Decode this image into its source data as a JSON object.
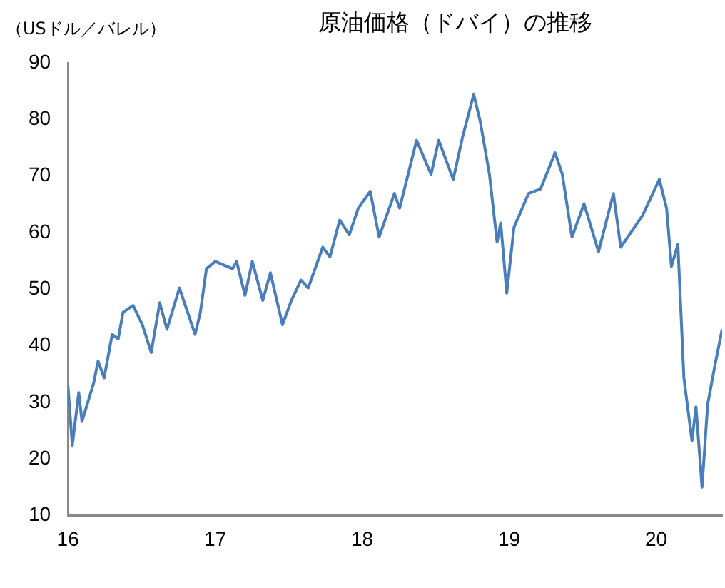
{
  "chart_data": {
    "type": "line",
    "title": "原油価格（ドバイ）の推移",
    "ylabel": "（USドル／バレル）",
    "xlim": [
      "2016-01-01",
      "2020-06-13"
    ],
    "xticks": [
      {
        "value": "2016-01-01",
        "label": "16"
      },
      {
        "value": "2017-01-01",
        "label": "17"
      },
      {
        "value": "2018-01-01",
        "label": "18"
      },
      {
        "value": "2019-01-01",
        "label": "19"
      },
      {
        "value": "2020-01-01",
        "label": "20"
      }
    ],
    "ylim": [
      10,
      90
    ],
    "yticks": [
      10,
      20,
      30,
      40,
      50,
      60,
      70,
      80,
      90
    ],
    "grid": false,
    "legend": false,
    "marker": "none",
    "series": [
      {
        "color": "#4a7ebb",
        "x": [
          "2016-01-01",
          "2016-01-12",
          "2016-01-28",
          "2016-02-05",
          "2016-03-05",
          "2016-03-16",
          "2016-03-31",
          "2016-04-20",
          "2016-05-05",
          "2016-05-17",
          "2016-06-11",
          "2016-07-04",
          "2016-07-26",
          "2016-08-16",
          "2016-09-03",
          "2016-10-04",
          "2016-11-12",
          "2016-11-25",
          "2016-12-10",
          "2017-01-01",
          "2017-02-13",
          "2017-02-23",
          "2017-03-16",
          "2017-04-03",
          "2017-04-29",
          "2017-05-18",
          "2017-06-17",
          "2017-07-09",
          "2017-08-02",
          "2017-08-20",
          "2017-09-25",
          "2017-10-13",
          "2017-11-06",
          "2017-11-30",
          "2017-12-22",
          "2018-01-21",
          "2018-02-12",
          "2018-03-22",
          "2018-04-04",
          "2018-05-16",
          "2018-06-21",
          "2018-07-10",
          "2018-08-15",
          "2018-09-08",
          "2018-10-05",
          "2018-10-21",
          "2018-11-13",
          "2018-12-02",
          "2018-12-11",
          "2018-12-26",
          "2019-01-13",
          "2019-02-18",
          "2019-03-20",
          "2019-04-25",
          "2019-05-13",
          "2019-06-06",
          "2019-07-06",
          "2019-08-11",
          "2019-09-17",
          "2019-10-05",
          "2019-11-28",
          "2020-01-09",
          "2020-01-27",
          "2020-02-08",
          "2020-02-24",
          "2020-03-10",
          "2020-03-30",
          "2020-04-09",
          "2020-04-24",
          "2020-05-08",
          "2020-05-27",
          "2020-06-13"
        ],
        "values": [
          33.0,
          22.4,
          31.7,
          26.6,
          33.4,
          37.3,
          34.3,
          42.0,
          41.2,
          45.9,
          47.1,
          43.7,
          38.8,
          47.6,
          42.9,
          50.2,
          42.0,
          45.9,
          53.6,
          54.9,
          53.6,
          54.9,
          48.9,
          54.9,
          48.0,
          52.9,
          43.7,
          48.0,
          51.6,
          50.2,
          57.4,
          55.7,
          62.2,
          59.6,
          64.3,
          67.3,
          59.2,
          66.9,
          64.3,
          76.3,
          70.3,
          76.3,
          69.4,
          77.1,
          84.4,
          79.7,
          70.3,
          58.3,
          61.7,
          49.3,
          60.9,
          66.9,
          67.7,
          74.1,
          70.3,
          59.2,
          65.1,
          56.6,
          66.9,
          57.4,
          63.0,
          69.4,
          64.3,
          54.0,
          57.9,
          34.3,
          23.2,
          29.2,
          15.0,
          29.6,
          36.9,
          42.9
        ]
      }
    ]
  }
}
